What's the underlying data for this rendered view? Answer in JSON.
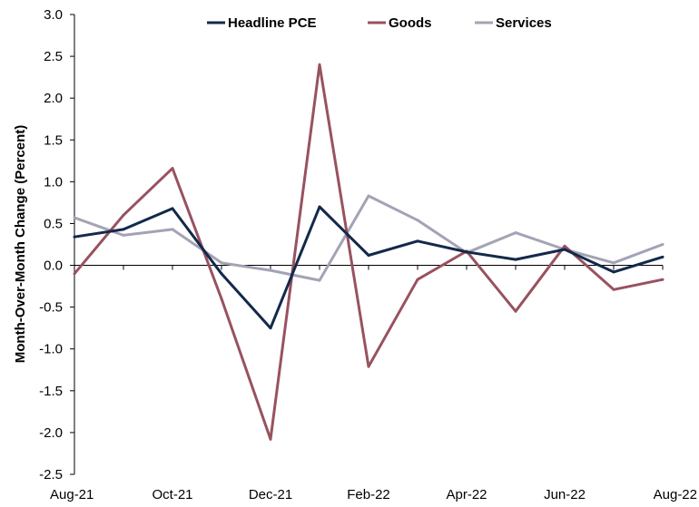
{
  "chart_data": {
    "type": "line",
    "title": "",
    "xlabel": "",
    "ylabel": "Month-Over-Month Change (Percent)",
    "x": [
      "Aug-21",
      "Sep-21",
      "Oct-21",
      "Nov-21",
      "Dec-21",
      "Jan-22",
      "Feb-22",
      "Mar-22",
      "Apr-22",
      "May-22",
      "Jun-22",
      "Jul-22",
      "Aug-22"
    ],
    "x_tick_labels": [
      "Aug-21",
      "Oct-21",
      "Dec-21",
      "Feb-22",
      "Apr-22",
      "Jun-22",
      "Aug-22"
    ],
    "ylim": [
      -2.5,
      3.0
    ],
    "y_ticks": [
      "3.0",
      "2.5",
      "2.0",
      "1.5",
      "1.0",
      "0.5",
      "0.0",
      "-0.5",
      "-1.0",
      "-1.5",
      "-2.0",
      "-2.5"
    ],
    "grid": false,
    "legend_position": "top",
    "series": [
      {
        "name": "Headline PCE",
        "color": "#13294b",
        "values": [
          0.34,
          0.43,
          0.68,
          -0.1,
          -0.75,
          0.7,
          0.12,
          0.29,
          0.16,
          0.07,
          0.19,
          -0.08,
          0.1
        ]
      },
      {
        "name": "Goods",
        "color": "#98525f",
        "values": [
          -0.1,
          0.6,
          1.16,
          -0.4,
          -2.08,
          2.4,
          -1.21,
          -0.17,
          0.17,
          -0.55,
          0.23,
          -0.29,
          -0.17
        ]
      },
      {
        "name": "Services",
        "color": "#a3a3b5",
        "values": [
          0.57,
          0.36,
          0.43,
          0.03,
          -0.06,
          -0.18,
          0.83,
          0.54,
          0.15,
          0.39,
          0.19,
          0.03,
          0.25
        ]
      }
    ]
  }
}
